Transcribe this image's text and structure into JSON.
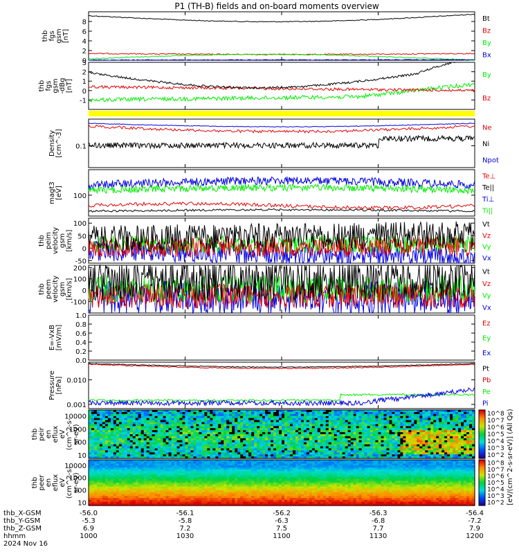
{
  "title": "P1 (TH-B) fields and on-board moments overview",
  "colors": {
    "black": "#000000",
    "red": "#e00000",
    "green": "#00ee00",
    "blue": "#0000e0",
    "yellow": "#ffff00"
  },
  "chart_data": [
    {
      "type": "line",
      "id": "fgs",
      "ylabel": [
        "thb",
        "fgs",
        "gsm",
        "[nT]"
      ],
      "ylim": [
        0,
        10
      ],
      "yticks": [
        "0",
        "2",
        "4",
        "6",
        "8"
      ],
      "series": [
        {
          "name": "Bt",
          "color": "black"
        },
        {
          "name": "Bz",
          "color": "red"
        },
        {
          "name": "By",
          "color": "green"
        },
        {
          "name": "Bx",
          "color": "blue"
        }
      ]
    },
    {
      "type": "line",
      "id": "fgs_dbg",
      "ylabel": [
        "thb",
        "fgs",
        "gsm",
        "-dBg",
        "[nT]"
      ],
      "ylim": [
        -2,
        3
      ],
      "yticks": [
        "3",
        "2",
        "1",
        "0",
        "-1"
      ],
      "series": [
        {
          "name": "By",
          "color": "green"
        },
        {
          "name": "Bz",
          "color": "red"
        }
      ]
    },
    {
      "type": "line",
      "id": "density",
      "ylabel": [
        "Density",
        "[cm^-3]"
      ],
      "yticks": [
        "0.1"
      ],
      "series": [
        {
          "name": "Ne",
          "color": "red"
        },
        {
          "name": "Ni",
          "color": "black"
        },
        {
          "name": "Npot",
          "color": "blue"
        }
      ]
    },
    {
      "type": "line",
      "id": "temp",
      "ylabel": [
        "magt3",
        "[eV]"
      ],
      "yticks": [
        "100"
      ],
      "series": [
        {
          "name": "Te⊥",
          "color": "red"
        },
        {
          "name": "Te||",
          "color": "black"
        },
        {
          "name": "Ti⊥",
          "color": "blue"
        },
        {
          "name": "Ti||",
          "color": "green"
        }
      ]
    },
    {
      "type": "line",
      "id": "peim",
      "ylabel": [
        "thb",
        "peim",
        "velocity",
        "gsm",
        "[km/s]"
      ],
      "ylim": [
        -60,
        120
      ],
      "yticks": [
        "100",
        "50",
        "0",
        "-50"
      ],
      "series": [
        {
          "name": "Vt",
          "color": "black"
        },
        {
          "name": "Vz",
          "color": "red"
        },
        {
          "name": "Vy",
          "color": "green"
        },
        {
          "name": "Vx",
          "color": "blue"
        }
      ]
    },
    {
      "type": "line",
      "id": "peem",
      "ylabel": [
        "thb",
        "peem",
        "velocity",
        "gsm",
        "[km/s]"
      ],
      "ylim": [
        -200,
        220
      ],
      "yticks": [
        "200",
        "100",
        "0",
        "-100"
      ],
      "series": [
        {
          "name": "Vt",
          "color": "black"
        },
        {
          "name": "Vz",
          "color": "red"
        },
        {
          "name": "Vy",
          "color": "green"
        },
        {
          "name": "Vx",
          "color": "blue"
        }
      ]
    },
    {
      "type": "line",
      "id": "efield",
      "ylabel": [
        "E=-VxB",
        "[mV/m]"
      ],
      "ylim": [
        0,
        1
      ],
      "yticks": [
        "1.0",
        "0.8",
        "0.6",
        "0.4",
        "0.2",
        "0.0"
      ],
      "series": [
        {
          "name": "Ez",
          "color": "red"
        },
        {
          "name": "Ey",
          "color": "green"
        },
        {
          "name": "Ex",
          "color": "blue"
        }
      ]
    },
    {
      "type": "line",
      "id": "pressure",
      "ylabel": [
        "Pressure",
        "[nPa]"
      ],
      "yticks": [
        "0.010",
        "0.001"
      ],
      "series": [
        {
          "name": "Pt",
          "color": "black"
        },
        {
          "name": "Pb",
          "color": "red"
        },
        {
          "name": "Pe",
          "color": "green"
        },
        {
          "name": "Pi",
          "color": "blue"
        }
      ]
    },
    {
      "type": "heatmap",
      "id": "peir",
      "ylabel": [
        "thb",
        "peir",
        "en",
        "eflux",
        "eV",
        "(cm^2-s-",
        "sr-eV)"
      ],
      "yticks": [
        "10000",
        "1000",
        "100",
        "10"
      ]
    },
    {
      "type": "heatmap",
      "id": "peer",
      "ylabel": [
        "thb",
        "peer",
        "en",
        "eflux",
        "eV",
        "(cm^2-s-",
        "sr-eV)"
      ],
      "yticks": [
        "10000",
        "1000",
        "100",
        "10"
      ]
    }
  ],
  "colorbar": {
    "label": "[eV/(cm^2-s-sr-eV)] (All Qs)",
    "ticks": [
      "10^8",
      "10^7",
      "10^6",
      "10^5",
      "10^4",
      "10^3",
      "10^2"
    ]
  },
  "xaxis": {
    "rows": [
      {
        "label": "thb_X-GSM",
        "values": [
          "-56.0",
          "-56.1",
          "-56.2",
          "-56.3",
          "-56.4"
        ]
      },
      {
        "label": "thb_Y-GSM",
        "values": [
          "-5.3",
          "-5.8",
          "-6.3",
          "-6.8",
          "-7.2"
        ]
      },
      {
        "label": "thb_Z-GSM",
        "values": [
          "6.9",
          "7.2",
          "7.5",
          "7.7",
          "7.9"
        ]
      },
      {
        "label": "hhmm",
        "values": [
          "1000",
          "1030",
          "1100",
          "1130",
          "1200"
        ]
      }
    ],
    "date": "2024 Nov 16"
  }
}
